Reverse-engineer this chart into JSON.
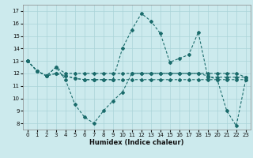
{
  "xlabel": "Humidex (Indice chaleur)",
  "bg_color": "#cceaed",
  "line_color": "#1a6b6b",
  "grid_color": "#aad4d8",
  "xlim": [
    -0.5,
    23.5
  ],
  "ylim": [
    7.5,
    17.5
  ],
  "xticks": [
    0,
    1,
    2,
    3,
    4,
    5,
    6,
    7,
    8,
    9,
    10,
    11,
    12,
    13,
    14,
    15,
    16,
    17,
    18,
    19,
    20,
    21,
    22,
    23
  ],
  "yticks": [
    8,
    9,
    10,
    11,
    12,
    13,
    14,
    15,
    16,
    17
  ],
  "series": [
    [
      13,
      12.2,
      11.8,
      12.5,
      11.5,
      9.5,
      8.5,
      8.0,
      9.0,
      9.8,
      10.5,
      12.0,
      12.0,
      12.0,
      12.0,
      12.0,
      12.0,
      12.0,
      12.0,
      11.8,
      11.5,
      9.0,
      7.8,
      11.5
    ],
    [
      13,
      12.2,
      11.8,
      12.5,
      12.0,
      12.0,
      12.0,
      12.0,
      12.0,
      12.0,
      12.0,
      12.0,
      12.0,
      12.0,
      12.0,
      12.0,
      12.0,
      12.0,
      12.0,
      12.0,
      12.0,
      12.0,
      12.0,
      11.7
    ],
    [
      13,
      12.2,
      11.8,
      12.0,
      11.8,
      11.6,
      11.5,
      11.5,
      11.5,
      11.5,
      14.0,
      15.5,
      16.8,
      16.2,
      15.2,
      12.9,
      13.2,
      13.5,
      15.3,
      11.7,
      11.7,
      11.7,
      11.7,
      11.7
    ],
    [
      13,
      12.2,
      11.8,
      12.0,
      11.8,
      11.6,
      11.5,
      11.5,
      11.5,
      11.5,
      11.5,
      11.5,
      11.5,
      11.5,
      11.5,
      11.5,
      11.5,
      11.5,
      11.5,
      11.5,
      11.5,
      11.5,
      11.5,
      11.5
    ]
  ]
}
